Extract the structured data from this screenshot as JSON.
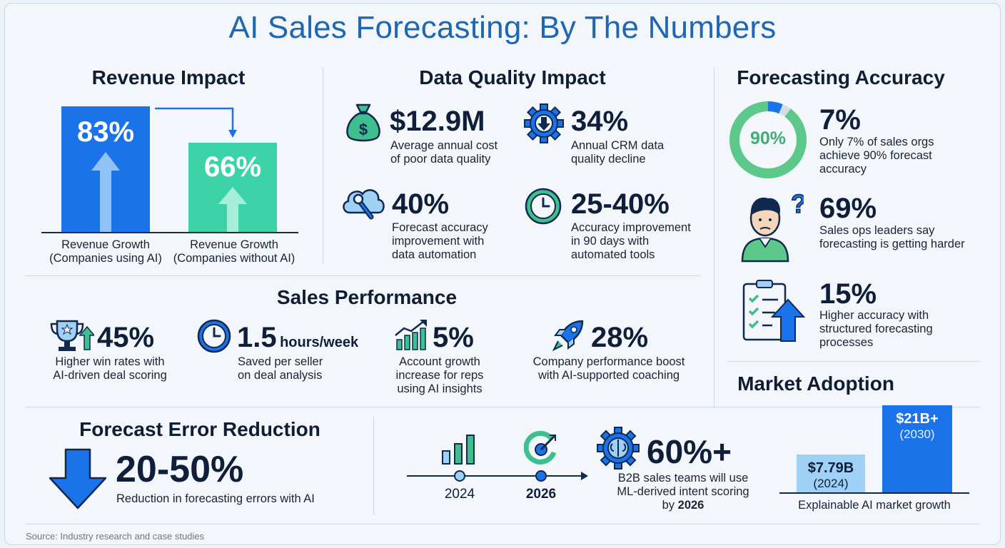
{
  "title": "AI Sales Forecasting: By The Numbers",
  "colors": {
    "title_blue": "#1f66b3",
    "bar_blue": "#1a73e8",
    "bar_teal": "#3cd3a8",
    "icon_teal": "#3fbf8e",
    "icon_navy": "#11294f",
    "accent_blue": "#1a73e8"
  },
  "revenue_impact": {
    "heading": "Revenue Impact",
    "bars": [
      {
        "value_label": "83%",
        "value": 83,
        "label": "Revenue Growth\n(Companies using AI)"
      },
      {
        "value_label": "66%",
        "value": 66,
        "label": "Revenue Growth\n(Companies without AI)"
      }
    ]
  },
  "data_quality": {
    "heading": "Data Quality Impact",
    "stats": [
      {
        "icon": "money-bag-icon",
        "value": "$12.9M",
        "desc": "Average annual cost\nof poor data quality"
      },
      {
        "icon": "gear-down-arrow-icon",
        "value": "34%",
        "desc": "Annual CRM data\nquality decline"
      },
      {
        "icon": "cloud-wrench-icon",
        "value": "40%",
        "desc": "Forecast accuracy\nimprovement with\ndata automation"
      },
      {
        "icon": "clock-icon",
        "value": "25-40%",
        "desc": "Accuracy improvement\nin 90 days with\nautomated tools"
      }
    ]
  },
  "forecasting_accuracy": {
    "heading": "Forecasting Accuracy",
    "donut_label": "90%",
    "donut_fraction": 0.9,
    "stats": [
      {
        "icon": "donut-icon",
        "value": "7%",
        "desc": "Only 7% of sales orgs\nachieve 90% forecast\naccuracy"
      },
      {
        "icon": "confused-person-icon",
        "value": "69%",
        "desc": "Sales ops leaders say\nforecasting is getting harder"
      },
      {
        "icon": "checklist-arrow-icon",
        "value": "15%",
        "desc": "Higher accuracy with\nstructured forecasting\nprocesses"
      }
    ]
  },
  "sales_performance": {
    "heading": "Sales Performance",
    "stats": [
      {
        "icon": "trophy-icon",
        "value": "45%",
        "unit": "",
        "desc": "Higher win rates with\nAI-driven deal scoring"
      },
      {
        "icon": "stopwatch-icon",
        "value": "1.5",
        "unit": "hours/week",
        "desc": "Saved per seller\non deal analysis"
      },
      {
        "icon": "growth-chart-icon",
        "value": "5%",
        "unit": "",
        "desc": "Account growth\nincrease for reps\nusing AI insights"
      },
      {
        "icon": "rocket-icon",
        "value": "28%",
        "unit": "",
        "desc": "Company performance boost\nwith AI-supported coaching"
      }
    ]
  },
  "forecast_error": {
    "heading": "Forecast Error Reduction",
    "value": "20-50%",
    "desc": "Reduction in forecasting errors with AI"
  },
  "timeline": {
    "year_start": "2024",
    "year_end": "2026",
    "value": "60%+",
    "desc_line1": "B2B sales teams will use",
    "desc_line2": "ML-derived intent scoring",
    "desc_line3_prefix": "by ",
    "desc_line3_year": "2026"
  },
  "market_adoption": {
    "heading": "Market Adoption",
    "bars": [
      {
        "value_label": "$7.79B",
        "year_label": "(2024)",
        "value": 7.79
      },
      {
        "value_label": "$21B+",
        "year_label": "(2030)",
        "value": 21
      }
    ],
    "caption": "Explainable AI market growth"
  },
  "source": "Source: Industry research and case studies"
}
